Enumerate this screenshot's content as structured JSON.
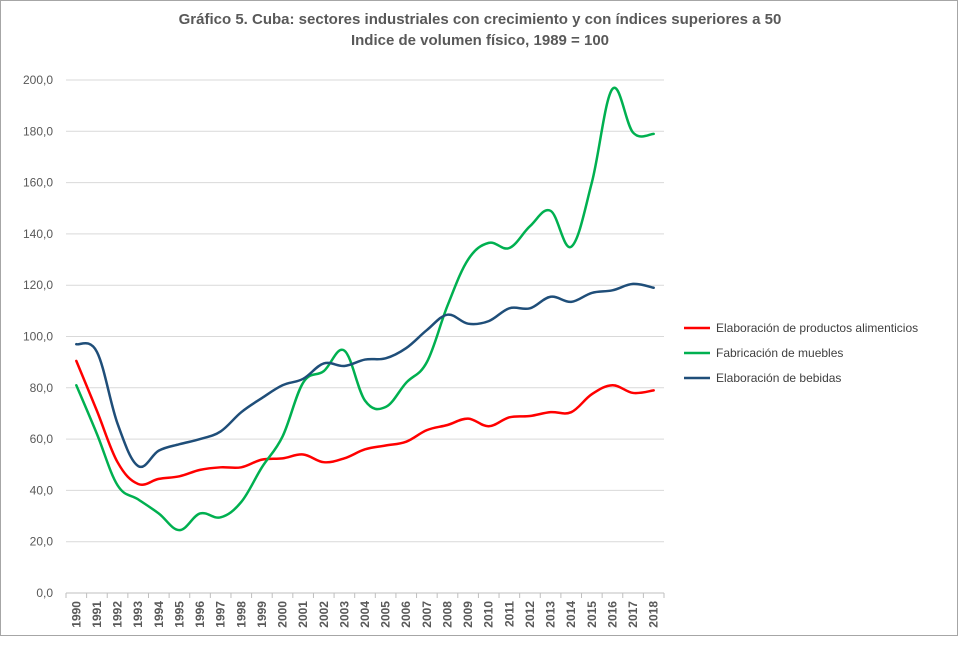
{
  "chart_data": {
    "type": "line",
    "title": "Gráfico 5. Cuba: sectores industriales con crecimiento y con índices superiores a 50",
    "subtitle": "Indice de volumen físico, 1989 = 100",
    "xlabel": "",
    "ylabel": "",
    "ylim": [
      0,
      200
    ],
    "yticks": [
      "0,0",
      "20,0",
      "40,0",
      "60,0",
      "80,0",
      "100,0",
      "120,0",
      "140,0",
      "160,0",
      "180,0",
      "200,0"
    ],
    "categories": [
      "1990",
      "1991",
      "1992",
      "1993",
      "1994",
      "1995",
      "1996",
      "1997",
      "1998",
      "1999",
      "2000",
      "2001",
      "2002",
      "2003",
      "2004",
      "2005",
      "2006",
      "2007",
      "2008",
      "2009",
      "2010",
      "2011",
      "2012",
      "2013",
      "2014",
      "2015",
      "2016",
      "2017",
      "2018"
    ],
    "grid": true,
    "legend_position": "right",
    "series": [
      {
        "name": "Elaboración de productos alimenticios",
        "color": "#ff0000",
        "values": [
          90.5,
          71,
          51,
          42.5,
          44.5,
          45.5,
          48,
          49,
          49,
          52,
          52.5,
          54,
          51,
          52.5,
          56,
          57.5,
          59,
          63.5,
          65.5,
          68,
          65,
          68.5,
          69,
          70.5,
          70.5,
          77.5,
          81,
          78,
          79
        ]
      },
      {
        "name": "Fabricación de muebles",
        "color": "#00b050",
        "values": [
          81,
          62,
          42,
          36.5,
          31,
          24.5,
          31,
          29.5,
          35.5,
          49,
          61,
          82,
          86.5,
          94.5,
          75,
          72.5,
          82,
          90,
          112,
          130,
          136.5,
          134.5,
          143,
          149,
          135,
          160,
          196.5,
          179.5,
          179
        ]
      },
      {
        "name": "Elaboración de bebidas",
        "color": "#1f4e79",
        "values": [
          97,
          94,
          66,
          49.5,
          55.5,
          58,
          60,
          63,
          70.5,
          76,
          81,
          83.5,
          89.5,
          88.5,
          91,
          91.5,
          95.5,
          102.5,
          108.5,
          105,
          106,
          111,
          111,
          115.5,
          113.5,
          117,
          118,
          120.5,
          119
        ]
      }
    ]
  }
}
